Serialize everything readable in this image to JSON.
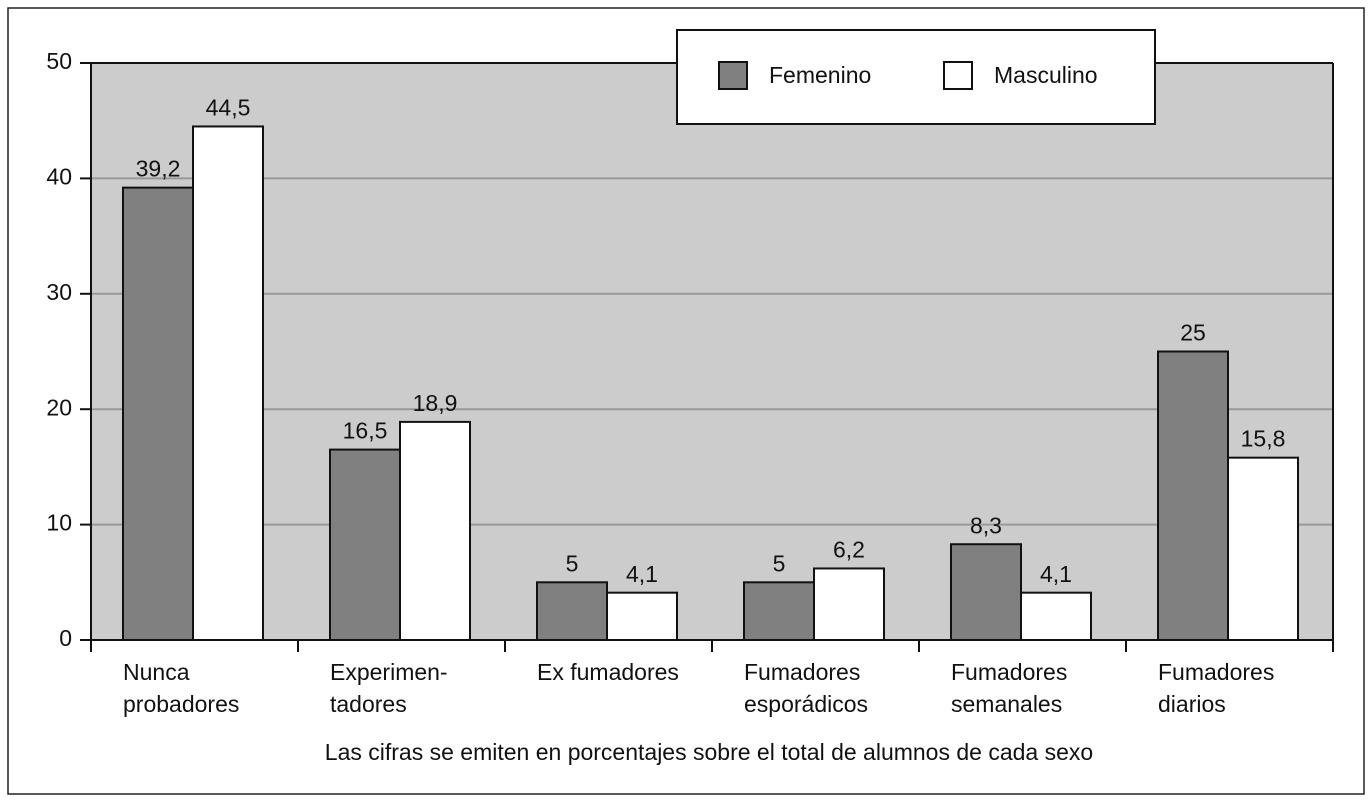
{
  "chart_data": {
    "type": "bar",
    "xlabel": "Las cifras se emiten en porcentajes sobre el total de alumnos de cada sexo",
    "categories": [
      [
        "Nunca",
        "probadores"
      ],
      [
        "Experimen-",
        "tadores"
      ],
      [
        "Ex fumadores"
      ],
      [
        "Fumadores",
        "esporádicos"
      ],
      [
        "Fumadores",
        "semanales"
      ],
      [
        "Fumadores",
        "diarios"
      ]
    ],
    "series": [
      {
        "name": "Femenino",
        "color": "#808080",
        "values": [
          39.2,
          16.5,
          5,
          5,
          8.3,
          25
        ],
        "value_labels": [
          "39,2",
          "16,5",
          "5",
          "5",
          "8,3",
          "25"
        ]
      },
      {
        "name": "Masculino",
        "color": "#ffffff",
        "values": [
          44.5,
          18.9,
          4.1,
          6.2,
          4.1,
          15.8
        ],
        "value_labels": [
          "44,5",
          "18,9",
          "4,1",
          "6,2",
          "4,1",
          "15,8"
        ]
      }
    ],
    "ylim": [
      0,
      50
    ],
    "yticks": [
      0,
      10,
      20,
      30,
      40,
      50
    ],
    "grid": true,
    "legend": "top-right"
  }
}
